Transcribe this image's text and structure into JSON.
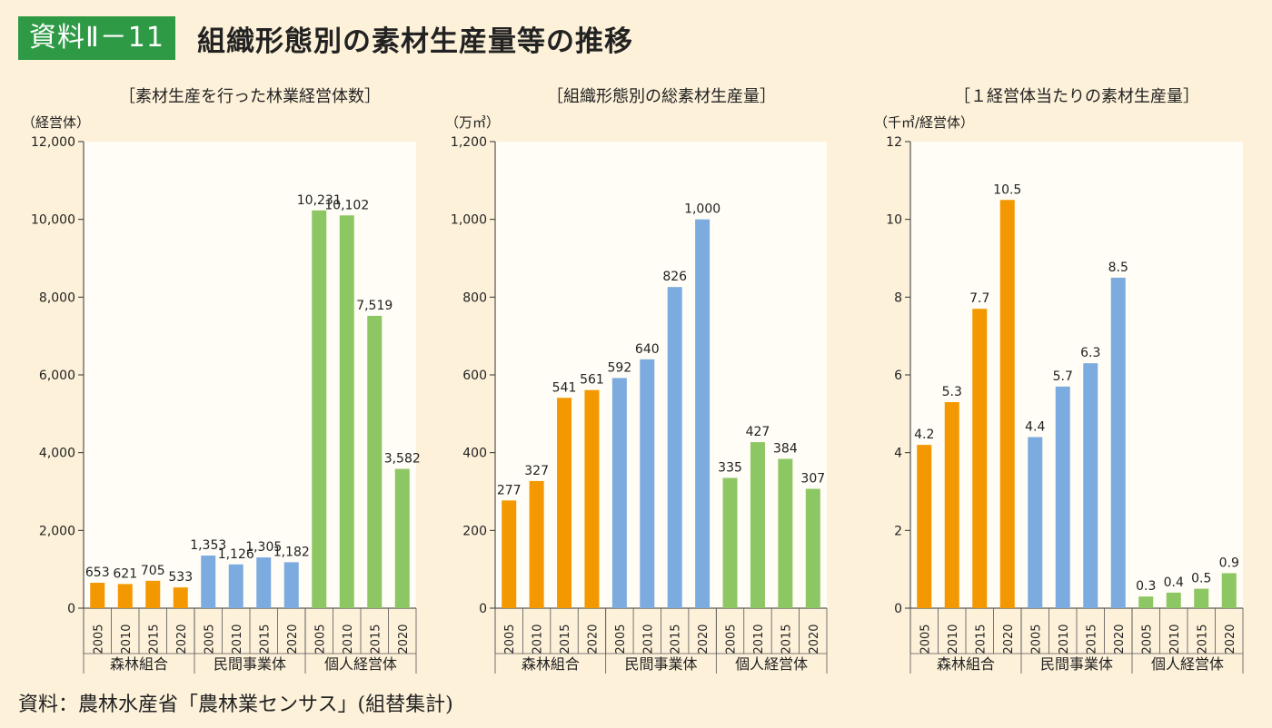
{
  "header": {
    "badge": "資料Ⅱ－11",
    "title": "組織形態別の素材生産量等の推移"
  },
  "source": "資料：農林水産省「農林業センサス」(組替集計)",
  "colors": {
    "background": "#fdf1d9",
    "plot_area": "#fffdf5",
    "badge": "#2f9a46",
    "森林組合": "#f39800",
    "民間事業体": "#7cabdf",
    "個人経営体": "#8cc763"
  },
  "chart_data": [
    {
      "type": "bar",
      "title": "［素材生産を行った林業経営体数］",
      "ylabel": "（経営体）",
      "ylim": [
        0,
        12000
      ],
      "yticks": [
        "0",
        "2,000",
        "4,000",
        "6,000",
        "8,000",
        "10,000",
        "12,000"
      ],
      "ytick_values": [
        0,
        2000,
        4000,
        6000,
        8000,
        10000,
        12000
      ],
      "years": [
        "2005",
        "2010",
        "2015",
        "2020"
      ],
      "series": [
        {
          "name": "森林組合",
          "values": [
            653,
            621,
            705,
            533
          ],
          "labels": [
            "653",
            "621",
            "705",
            "533"
          ]
        },
        {
          "name": "民間事業体",
          "values": [
            1353,
            1126,
            1305,
            1182
          ],
          "labels": [
            "1,353",
            "1,126",
            "1,305",
            "1,182"
          ]
        },
        {
          "name": "個人経営体",
          "values": [
            10231,
            10102,
            7519,
            3582
          ],
          "labels": [
            "10,231",
            "10,102",
            "7,519",
            "3,582"
          ]
        }
      ]
    },
    {
      "type": "bar",
      "title": "［組織形態別の総素材生産量］",
      "ylabel": "（万㎥）",
      "ylim": [
        0,
        1200
      ],
      "yticks": [
        "0",
        "200",
        "400",
        "600",
        "800",
        "1,000",
        "1,200"
      ],
      "ytick_values": [
        0,
        200,
        400,
        600,
        800,
        1000,
        1200
      ],
      "years": [
        "2005",
        "2010",
        "2015",
        "2020"
      ],
      "series": [
        {
          "name": "森林組合",
          "values": [
            277,
            327,
            541,
            561
          ],
          "labels": [
            "277",
            "327",
            "541",
            "561"
          ]
        },
        {
          "name": "民間事業体",
          "values": [
            592,
            640,
            826,
            1000
          ],
          "labels": [
            "592",
            "640",
            "826",
            "1,000"
          ]
        },
        {
          "name": "個人経営体",
          "values": [
            335,
            427,
            384,
            307
          ],
          "labels": [
            "335",
            "427",
            "384",
            "307"
          ]
        }
      ]
    },
    {
      "type": "bar",
      "title": "［１経営体当たりの素材生産量］",
      "ylabel": "（千㎥/経営体）",
      "ylim": [
        0,
        12
      ],
      "yticks": [
        "0",
        "2",
        "4",
        "6",
        "8",
        "10",
        "12"
      ],
      "ytick_values": [
        0,
        2,
        4,
        6,
        8,
        10,
        12
      ],
      "years": [
        "2005",
        "2010",
        "2015",
        "2020"
      ],
      "series": [
        {
          "name": "森林組合",
          "values": [
            4.2,
            5.3,
            7.7,
            10.5
          ],
          "labels": [
            "4.2",
            "5.3",
            "7.7",
            "10.5"
          ]
        },
        {
          "name": "民間事業体",
          "values": [
            4.4,
            5.7,
            6.3,
            8.5
          ],
          "labels": [
            "4.4",
            "5.7",
            "6.3",
            "8.5"
          ]
        },
        {
          "name": "個人経営体",
          "values": [
            0.3,
            0.4,
            0.5,
            0.9
          ],
          "labels": [
            "0.3",
            "0.4",
            "0.5",
            "0.9"
          ]
        }
      ]
    }
  ]
}
